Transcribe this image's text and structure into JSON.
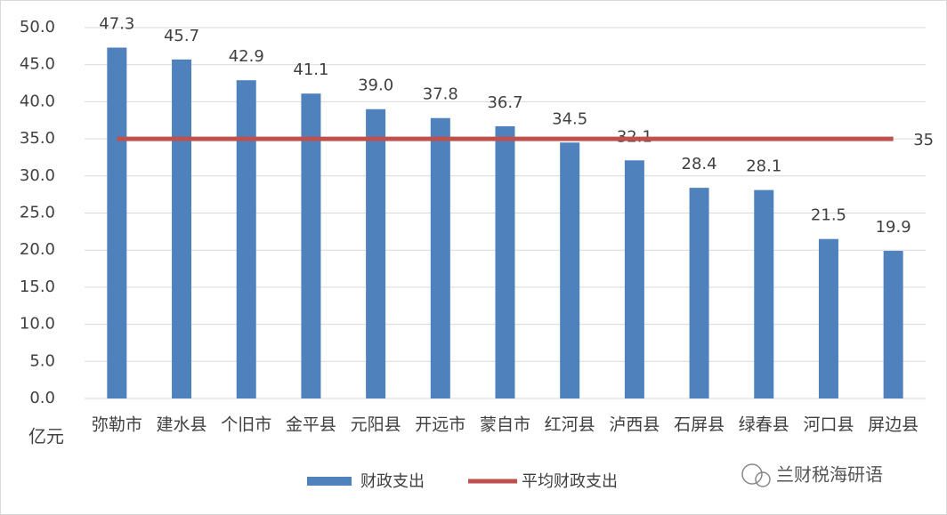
{
  "chart_data": {
    "type": "bar",
    "categories": [
      "弥勒市",
      "建水县",
      "个旧市",
      "金平县",
      "元阳县",
      "开远市",
      "蒙自市",
      "红河县",
      "泸西县",
      "石屏县",
      "绿春县",
      "河口县",
      "屏边县"
    ],
    "series": [
      {
        "name": "财政支出",
        "type": "bar",
        "color": "#4f81bd",
        "values": [
          47.3,
          45.7,
          42.9,
          41.1,
          39.0,
          37.8,
          36.7,
          34.5,
          32.1,
          28.4,
          28.1,
          21.5,
          19.9
        ],
        "value_labels": [
          "47.3",
          "45.7",
          "42.9",
          "41.1",
          "39.0",
          "37.8",
          "36.7",
          "34.5",
          "32.1",
          "28.4",
          "28.1",
          "21.5",
          "19.9"
        ]
      },
      {
        "name": "平均财政支出",
        "type": "line",
        "color": "#c0504d",
        "values": [
          35,
          35,
          35,
          35,
          35,
          35,
          35,
          35,
          35,
          35,
          35,
          35,
          35
        ]
      }
    ],
    "y_unit": "亿元",
    "ylim": [
      0,
      50
    ],
    "yticks": [
      {
        "value": 0,
        "label": "0.0"
      },
      {
        "value": 5,
        "label": "5.0"
      },
      {
        "value": 10,
        "label": "10.0"
      },
      {
        "value": 15,
        "label": "15.0"
      },
      {
        "value": 20,
        "label": "20.0"
      },
      {
        "value": 25,
        "label": "25.0"
      },
      {
        "value": 30,
        "label": "30.0"
      },
      {
        "value": 35,
        "label": "35.0"
      },
      {
        "value": 40,
        "label": "40.0"
      },
      {
        "value": 45,
        "label": "45.0"
      },
      {
        "value": 50,
        "label": "50.0"
      }
    ],
    "grid": true,
    "legend": "bottom",
    "watermark": "兰财税海研语"
  }
}
